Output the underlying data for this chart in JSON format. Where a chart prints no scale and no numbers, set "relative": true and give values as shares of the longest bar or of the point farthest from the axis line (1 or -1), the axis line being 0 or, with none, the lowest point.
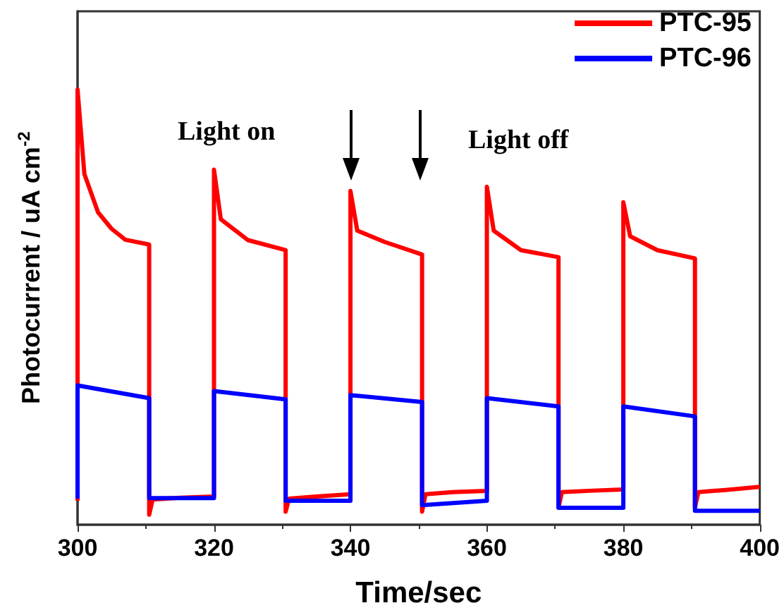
{
  "chart_data": {
    "type": "line",
    "relative": true,
    "xlabel": "Time/sec",
    "ylabel": "Photocurrent / uA cm$^{-2}$",
    "xlim": [
      300,
      400
    ],
    "xticks": [
      300,
      320,
      340,
      360,
      380,
      400
    ],
    "annotations": [
      "Light on",
      "Light off"
    ],
    "legend": "top right",
    "grid": false,
    "marker": "none",
    "line_style": "solid",
    "series": [
      {
        "name": "PTC-95",
        "color": "#ff0000",
        "x": [
          300,
          300,
          301,
          303,
          305,
          307,
          310.5,
          310.5,
          311,
          315,
          320,
          320,
          321,
          325,
          330.5,
          330.5,
          331,
          335,
          340,
          340,
          341,
          345,
          350.5,
          350.5,
          351,
          355,
          360,
          360,
          361,
          365,
          370.5,
          370.5,
          371,
          375,
          380,
          380,
          381,
          385,
          390.5,
          390.5,
          391,
          395,
          400
        ],
        "values": [
          0.055,
          1.0,
          0.806,
          0.718,
          0.68,
          0.655,
          0.644,
          0.023,
          0.058,
          0.062,
          0.065,
          0.816,
          0.702,
          0.654,
          0.631,
          0.03,
          0.06,
          0.065,
          0.07,
          0.767,
          0.676,
          0.65,
          0.621,
          0.03,
          0.07,
          0.075,
          0.078,
          0.777,
          0.676,
          0.631,
          0.615,
          0.04,
          0.075,
          0.078,
          0.081,
          0.741,
          0.663,
          0.631,
          0.612,
          0.04,
          0.075,
          0.08,
          0.087
        ]
      },
      {
        "name": "PTC-96",
        "color": "#0000ff",
        "x": [
          300,
          300,
          310.5,
          310.5,
          320,
          320,
          330.5,
          330.5,
          340,
          340,
          350.5,
          350.5,
          360,
          360,
          370.5,
          370.5,
          380,
          380,
          390.5,
          390.5,
          400
        ],
        "values": [
          0.06,
          0.32,
          0.291,
          0.061,
          0.061,
          0.307,
          0.288,
          0.055,
          0.055,
          0.298,
          0.282,
          0.045,
          0.055,
          0.291,
          0.272,
          0.039,
          0.039,
          0.272,
          0.249,
          0.032,
          0.032
        ]
      }
    ]
  }
}
